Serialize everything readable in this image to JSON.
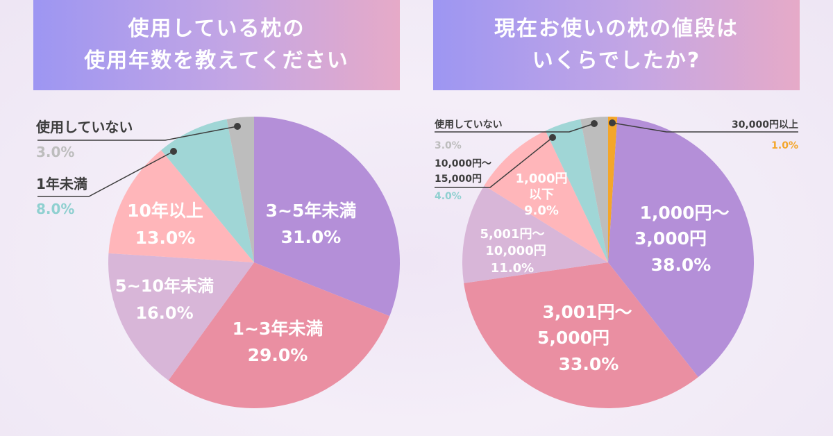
{
  "left_title": {
    "line1": "使用している枕の",
    "line2": "使用年数を教えてください"
  },
  "right_title": {
    "line1": "現在お使いの枕の値段は",
    "line2": "いくらでしたか?"
  },
  "chart_data": [
    {
      "type": "pie",
      "title": "使用している枕の使用年数を教えてください",
      "slices": [
        {
          "label": "3~5年未満",
          "value": 31.0,
          "display": "31.0%",
          "color": "#b48fd8"
        },
        {
          "label": "1~3年未満",
          "value": 29.0,
          "display": "29.0%",
          "color": "#ea8fa2"
        },
        {
          "label": "5~10年未満",
          "value": 16.0,
          "display": "16.0%",
          "color": "#d8b6d8"
        },
        {
          "label": "10年以上",
          "value": 13.0,
          "display": "13.0%",
          "color": "#ffb6ba"
        },
        {
          "label": "1年未満",
          "value": 8.0,
          "display": "8.0%",
          "color": "#a0d6d6"
        },
        {
          "label": "使用していない",
          "value": 3.0,
          "display": "3.0%",
          "color": "#bdbdbd"
        }
      ]
    },
    {
      "type": "pie",
      "title": "現在お使いの枕の値段はいくらでしたか?",
      "slices": [
        {
          "label": "1,000円～3,000円",
          "value": 38.0,
          "display": "38.0%",
          "color": "#b48fd8"
        },
        {
          "label": "3,001円～5,000円",
          "value": 33.0,
          "display": "33.0%",
          "color": "#ea8fa2"
        },
        {
          "label": "5,001円～10,000円",
          "value": 11.0,
          "display": "11.0%",
          "color": "#d8b6d8"
        },
        {
          "label": "1,000円以下",
          "value": 9.0,
          "display": "9.0%",
          "color": "#ffb6ba"
        },
        {
          "label": "10,000円～15,000円",
          "value": 4.0,
          "display": "4.0%",
          "color": "#a0d6d6"
        },
        {
          "label": "使用していない",
          "value": 3.0,
          "display": "3.0%",
          "color": "#bdbdbd"
        },
        {
          "label": "30,000円以上",
          "value": 1.0,
          "display": "1.0%",
          "color": "#f4a62a"
        }
      ]
    }
  ],
  "left_labels": {
    "s0": [
      "3~5年未満",
      "31.0%"
    ],
    "s1": [
      "1~3年未満",
      "29.0%"
    ],
    "s2": [
      "5~10年未満",
      "16.0%"
    ],
    "s3": [
      "10年以上",
      "13.0%"
    ],
    "c1": [
      "1年未満",
      "8.0%"
    ],
    "c0": [
      "使用していない",
      "3.0%"
    ]
  },
  "right_labels": {
    "s0": [
      "1,000円～",
      "3,000円",
      "38.0%"
    ],
    "s1": [
      "3,001円～",
      "5,000円",
      "33.0%"
    ],
    "s2": [
      "5,001円～",
      "10,000円",
      "11.0%"
    ],
    "s3": [
      "1,000円",
      "以下",
      "9.0%"
    ],
    "c_nouse": [
      "使用していない",
      "3.0%"
    ],
    "c_10k": [
      "10,000円～",
      "15,000円",
      "4.0%"
    ],
    "c_30k": [
      "30,000円以上",
      "1.0%"
    ]
  },
  "callout_colors": {
    "gray": "#bdbdbd",
    "teal": "#8fd0d0",
    "orange": "#f4a62a",
    "line": "#3d3d3d"
  }
}
